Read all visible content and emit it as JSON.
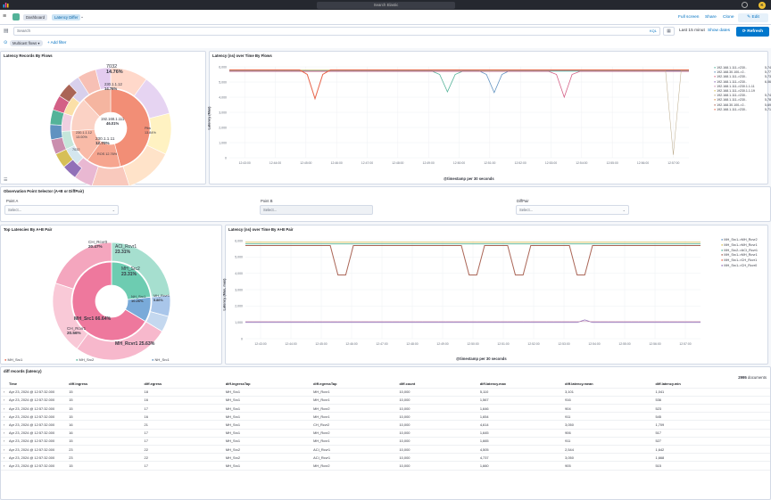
{
  "topbar": {
    "search_placeholder": "Search Elastic",
    "avatar_initial": "K"
  },
  "navbar": {
    "crumbs": [
      "Dashboard",
      "Latency Differ"
    ],
    "full_screen": "Full screen",
    "share": "Share",
    "clone": "Clone",
    "edit": "Edit"
  },
  "query": {
    "placeholder": "Search",
    "kql": "KQL",
    "time_text": "Last 15 minut",
    "show_dates": "Show dates",
    "refresh": "Refresh"
  },
  "filters": {
    "pill": "Multicast flows",
    "add_filter": "+ Add filter"
  },
  "colors": {
    "accent": "#0077cc",
    "green": "#54b399",
    "pink": "#d6689e",
    "salmon": "#e7664c",
    "orange": "#d8a031"
  },
  "panel1": {
    "title": "Latency Records By Flows",
    "labels": [
      {
        "text": "7032",
        "sub": "14.76%"
      },
      {
        "text": "230.1.1.12",
        "sub": "14.76%"
      },
      {
        "text": "192.168.1.111",
        "sub": "46.01%"
      },
      {
        "text": "230.1.1.11",
        "sub": "12.70%"
      },
      {
        "text": "230.1.1.12",
        "sub": "13.00%"
      },
      {
        "text": "7032",
        "sub": ""
      },
      {
        "text": "Pilw",
        "sub": "13.84%"
      },
      {
        "text": "ROS 12.76%",
        "sub": ""
      }
    ]
  },
  "panel2": {
    "title": "Latency (ns) over Time By Flows",
    "ylabel": "Latency (Max)",
    "xlabel": "@timestamp per 30 seconds",
    "yticks": [
      "6,000",
      "5,000",
      "4,000",
      "3,000",
      "2,000",
      "1,000",
      "0"
    ],
    "xticks": [
      "12:43:00",
      "12:44:00",
      "12:45:00",
      "12:46:00",
      "12:47:00",
      "12:48:00",
      "12:49:00",
      "12:50:00",
      "12:51:00",
      "12:52:00",
      "12:53:00",
      "12:54:00",
      "12:55:00",
      "12:56:00",
      "12:57:00"
    ],
    "legend": [
      {
        "name": "192.168.1.111->230..",
        "val": "5,746",
        "color": "#54b399"
      },
      {
        "name": "192.168.30.100->2..",
        "val": "5,775",
        "color": "#6092c0"
      },
      {
        "name": "192.168.1.111->230..",
        "val": "5,736",
        "color": "#d36086"
      },
      {
        "name": "192.168.1.111->230..",
        "val": "6,061",
        "color": "#9170b8"
      },
      {
        "name": "192.168.1.111->230.1.1.11",
        "val": "",
        "color": "#ca8eae"
      },
      {
        "name": "192.168.1.111->230.1.1.19",
        "val": "",
        "color": "#d6bf57"
      },
      {
        "name": "192.168.1.111->230..",
        "val": "5,741",
        "color": "#b9a888"
      },
      {
        "name": "192.168.1.111->230..",
        "val": "5,787",
        "color": "#da8b45"
      },
      {
        "name": "192.168.30.100->2..",
        "val": "5,697",
        "color": "#aa6556"
      },
      {
        "name": "192.168.1.111->230..",
        "val": "5,718",
        "color": "#e7664c"
      }
    ]
  },
  "chart_data": {
    "type": "line",
    "title": "Latency (ns) over Time By Flows",
    "xlabel": "@timestamp per 30 seconds",
    "ylabel": "Latency (Max)",
    "ylim": [
      0,
      6000
    ],
    "x": [
      "12:43:00",
      "12:44:00",
      "12:45:00",
      "12:46:00",
      "12:47:00",
      "12:48:00",
      "12:49:00",
      "12:50:00",
      "12:51:00",
      "12:52:00",
      "12:53:00",
      "12:54:00",
      "12:55:00",
      "12:56:00",
      "12:57:00"
    ],
    "series": [
      {
        "name": "192.168.1.111->230..",
        "values": [
          5800,
          5800,
          3800,
          5800,
          5800,
          5800,
          5800,
          5800,
          5800,
          5800,
          5800,
          5800,
          5800,
          5800,
          5800
        ]
      },
      {
        "name": "192.168.1.111->230..",
        "values": [
          5750,
          5750,
          5750,
          5750,
          5750,
          5750,
          5750,
          5750,
          5750,
          4300,
          5750,
          5750,
          5750,
          5750,
          5750
        ]
      },
      {
        "name": "192.168.30.100->2..",
        "values": [
          5700,
          5700,
          5700,
          5700,
          5700,
          5700,
          5700,
          5700,
          5700,
          5700,
          4000,
          5700,
          5700,
          5700,
          5700
        ]
      }
    ]
  },
  "control": {
    "title": "Observation Point Selector (A+B or DiffPair)",
    "a": "Point A",
    "b": "Point B",
    "c": "DiffPair",
    "select": "Select...",
    "select_b": "Select..."
  },
  "panel4": {
    "title": "Top Latencies By A+B Pair",
    "labels": [
      {
        "text": "ACI_Rcvr1",
        "sub": "23.31%"
      },
      {
        "text": "MH_Src2",
        "sub": "23.31%"
      },
      {
        "text": "CH_Rcvr0",
        "sub": "20.47%"
      },
      {
        "text": "NH_Src1",
        "sub": "10.26%"
      },
      {
        "text": "MH_Rcvr1",
        "sub": "5.86%"
      },
      {
        "text": "MH_Src1 66.64%",
        "sub": ""
      },
      {
        "text": "CH_Rcvr1",
        "sub": "20.56%"
      },
      {
        "text": "MH_Rcvr1 25.63%",
        "sub": ""
      }
    ],
    "legend": [
      "MH_Src1",
      "MH_Src2",
      "NH_Src1"
    ]
  },
  "panel5": {
    "title": "Latency (ns) over Time By A+B Pair",
    "ylabel": "Latency (Max, max)",
    "xlabel": "@timestamp per 30 seconds",
    "yticks": [
      "6,000",
      "5,000",
      "4,000",
      "3,000",
      "2,000",
      "1,000",
      "0"
    ],
    "xticks": [
      "12:43:00",
      "12:44:00",
      "12:45:00",
      "12:46:00",
      "12:47:00",
      "12:48:00",
      "12:49:00",
      "12:50:00",
      "12:51:00",
      "12:52:00",
      "12:53:00",
      "12:54:00",
      "12:55:00",
      "12:56:00",
      "12:57:00"
    ],
    "legend": [
      {
        "name": "MH_Src1->MH_Rcvr2",
        "color": "#6092c0"
      },
      {
        "name": "MH_Src1->MH_Rcvr1",
        "color": "#d6bf57"
      },
      {
        "name": "MH_Src2->ACI_Rcvr1",
        "color": "#54b399"
      },
      {
        "name": "MH_Src1->MH_Rcvr1",
        "color": "#aa6556"
      },
      {
        "name": "MH_Src1->CH_Rcvr1",
        "color": "#e7664c"
      },
      {
        "name": "MH_Src1->CH_Rcvr0",
        "color": "#9170b8"
      }
    ]
  },
  "table": {
    "title": "diff records (latency)",
    "doc_count": "2995",
    "doc_label": "documents",
    "columns": [
      "Time",
      "diff.ingress",
      "diff.egress",
      "diff.ingressTap",
      "diff.egressTap",
      "diff.count",
      "diff.latency.max",
      "diff.latency.mean",
      "diff.latency.min"
    ],
    "rows": [
      [
        "Apr 23, 2024 @ 12:57:32.000",
        "15",
        "18",
        "MH_Src1",
        "MH_Rcvr1",
        "10,000",
        "5,110",
        "3,101",
        "1,041"
      ],
      [
        "Apr 23, 2024 @ 12:57:32.000",
        "15",
        "16",
        "MH_Src1",
        "MH_Rcvr1",
        "10,000",
        "1,567",
        "916",
        "536"
      ],
      [
        "Apr 23, 2024 @ 12:57:32.000",
        "15",
        "17",
        "MH_Src1",
        "MH_Rcvr2",
        "10,000",
        "1,646",
        "904",
        "523"
      ],
      [
        "Apr 23, 2024 @ 12:57:32.000",
        "15",
        "16",
        "MH_Src1",
        "MH_Rcvr1",
        "10,000",
        "1,654",
        "911",
        "545"
      ],
      [
        "Apr 23, 2024 @ 12:57:32.000",
        "16",
        "21",
        "MH_Src1",
        "CH_Rcvr2",
        "10,000",
        "4,614",
        "3,050",
        "1,709"
      ],
      [
        "Apr 23, 2024 @ 12:57:32.000",
        "16",
        "17",
        "MH_Src1",
        "MH_Rcvr2",
        "10,000",
        "1,645",
        "906",
        "517"
      ],
      [
        "Apr 23, 2024 @ 12:57:32.000",
        "15",
        "17",
        "MH_Src1",
        "MH_Rcvr1",
        "10,000",
        "1,665",
        "911",
        "527"
      ],
      [
        "Apr 23, 2024 @ 12:57:32.000",
        "23",
        "22",
        "MH_Src2",
        "ACI_Rcvr1",
        "10,000",
        "4,505",
        "2,544",
        "1,642"
      ],
      [
        "Apr 23, 2024 @ 12:57:32.000",
        "23",
        "22",
        "MH_Src2",
        "ACI_Rcvr1",
        "10,000",
        "4,737",
        "3,050",
        "1,668"
      ],
      [
        "Apr 23, 2024 @ 12:57:32.000",
        "15",
        "17",
        "MH_Src1",
        "MH_Rcvr2",
        "10,000",
        "1,660",
        "905",
        "515"
      ]
    ]
  }
}
